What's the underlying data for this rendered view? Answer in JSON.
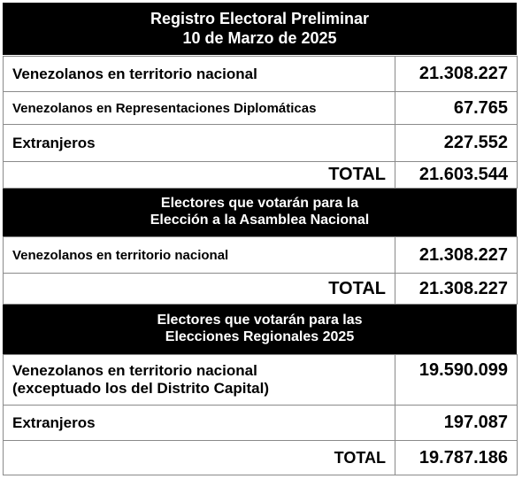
{
  "section1": {
    "title_line1": "Registro Electoral Preliminar",
    "title_line2": "10 de Marzo de 2025",
    "rows": [
      {
        "label": "Venezolanos en territorio nacional",
        "value": "21.308.227"
      },
      {
        "label": "Venezolanos en Representaciones Diplomáticas",
        "value": "67.765"
      },
      {
        "label": "Extranjeros",
        "value": "227.552"
      }
    ],
    "total_label": "TOTAL",
    "total_value": "21.603.544"
  },
  "section2": {
    "title_line1": "Electores que votarán para la",
    "title_line2": "Elección a la Asamblea Nacional",
    "rows": [
      {
        "label": "Venezolanos en territorio nacional",
        "value": "21.308.227"
      }
    ],
    "total_label": "TOTAL",
    "total_value": "21.308.227"
  },
  "section3": {
    "title_line1": "Electores que votarán para las",
    "title_line2": "Elecciones Regionales 2025",
    "rows": [
      {
        "label_line1": "Venezolanos en territorio nacional",
        "label_line2": "(exceptuado los del Distrito Capital)",
        "value": "19.590.099"
      },
      {
        "label": "Extranjeros",
        "value": "197.087"
      }
    ],
    "total_label": "TOTAL",
    "total_value": "19.787.186"
  }
}
